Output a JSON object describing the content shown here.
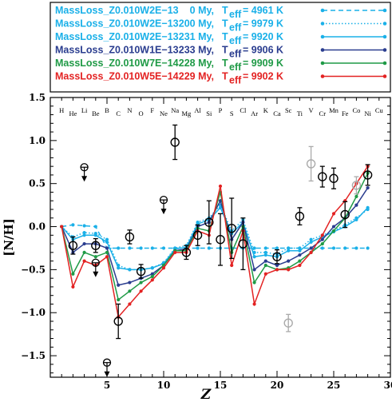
{
  "chart_data": {
    "type": "line",
    "xlabel": "Z",
    "ylabel": "[N/H]",
    "xlim": [
      0,
      30
    ],
    "ylim": [
      -1.75,
      1.5
    ],
    "x_ticks": [
      5,
      10,
      15,
      20,
      25,
      30
    ],
    "y_ticks": [
      -1.5,
      -1.0,
      -0.5,
      0.0,
      0.5,
      1.0,
      1.5
    ],
    "x_tick_labels": [
      "5",
      "10",
      "15",
      "20",
      "25",
      "30"
    ],
    "y_tick_labels": [
      "−1.5",
      "−1.0",
      "−0.5",
      "0.0",
      "0.5",
      "1.0",
      "1.5"
    ],
    "legend_position": "top",
    "element_labels": [
      {
        "z": 1,
        "label": "H"
      },
      {
        "z": 2,
        "label": "He"
      },
      {
        "z": 3,
        "label": "Li"
      },
      {
        "z": 4,
        "label": "Be"
      },
      {
        "z": 5,
        "label": "B"
      },
      {
        "z": 6,
        "label": "C"
      },
      {
        "z": 7,
        "label": "N"
      },
      {
        "z": 8,
        "label": "O"
      },
      {
        "z": 9,
        "label": "F"
      },
      {
        "z": 10,
        "label": "Ne"
      },
      {
        "z": 11,
        "label": "Na"
      },
      {
        "z": 12,
        "label": "Mg"
      },
      {
        "z": 13,
        "label": "Al"
      },
      {
        "z": 14,
        "label": "Si"
      },
      {
        "z": 15,
        "label": "P"
      },
      {
        "z": 16,
        "label": "S"
      },
      {
        "z": 17,
        "label": "Cl"
      },
      {
        "z": 18,
        "label": "Ar"
      },
      {
        "z": 19,
        "label": "K"
      },
      {
        "z": 20,
        "label": "Ca"
      },
      {
        "z": 21,
        "label": "Sc"
      },
      {
        "z": 22,
        "label": "Ti"
      },
      {
        "z": 23,
        "label": "V"
      },
      {
        "z": 24,
        "label": "Cr"
      },
      {
        "z": 25,
        "label": "Mn"
      },
      {
        "z": 26,
        "label": "Fe"
      },
      {
        "z": 27,
        "label": "Co"
      },
      {
        "z": 28,
        "label": "Ni"
      },
      {
        "z": 29,
        "label": "Cu"
      }
    ],
    "series": [
      {
        "name": "MassLoss_Z0.010W2E−13",
        "age": "0 My,",
        "teff_symbol": "T",
        "teff_sub": "eff",
        "teff_value": "= 4961 K",
        "color": "#1ab0e8",
        "dash": "dashed",
        "x": [
          1,
          2,
          3,
          4,
          5,
          6,
          7,
          8,
          9,
          10,
          11,
          12,
          13,
          14,
          15,
          16,
          17,
          18,
          19,
          20,
          21,
          22,
          23,
          24,
          25,
          26,
          27,
          28
        ],
        "y": [
          0,
          0.02,
          0.01,
          0,
          -0.25,
          -0.25,
          -0.25,
          -0.25,
          -0.25,
          -0.25,
          -0.25,
          -0.25,
          -0.25,
          -0.25,
          -0.25,
          -0.25,
          -0.25,
          -0.25,
          -0.25,
          -0.25,
          -0.25,
          -0.25,
          -0.25,
          -0.25,
          -0.25,
          -0.25,
          -0.25,
          -0.25
        ]
      },
      {
        "name": "MassLoss_Z0.010W2E−13",
        "age": "200 My,",
        "teff_symbol": "T",
        "teff_sub": "eff",
        "teff_value": "= 9979 K",
        "color": "#1ab0e8",
        "dash": "dotted",
        "x": [
          1,
          2,
          3,
          4,
          5,
          6,
          7,
          8,
          9,
          10,
          11,
          12,
          13,
          14,
          15,
          16,
          17,
          18,
          19,
          20,
          21,
          22,
          23,
          24,
          25,
          26,
          27,
          28
        ],
        "y": [
          0,
          -0.12,
          -0.07,
          -0.08,
          -0.15,
          -0.45,
          -0.5,
          -0.5,
          -0.48,
          -0.42,
          -0.25,
          -0.22,
          0.05,
          0.1,
          0.25,
          -0.05,
          0.08,
          -0.3,
          -0.3,
          -0.32,
          -0.25,
          -0.25,
          -0.15,
          -0.1,
          -0.05,
          0.02,
          0.1,
          0.2
        ]
      },
      {
        "name": "MassLoss_Z0.010W2E−13",
        "age": "231 My,",
        "teff_symbol": "T",
        "teff_sub": "eff",
        "teff_value": "= 9920 K",
        "color": "#1ab0e8",
        "dash": "solid",
        "x": [
          1,
          2,
          3,
          4,
          5,
          6,
          7,
          8,
          9,
          10,
          11,
          12,
          13,
          14,
          15,
          16,
          17,
          18,
          19,
          20,
          21,
          22,
          23,
          24,
          25,
          26,
          27,
          28
        ],
        "y": [
          0,
          -0.15,
          -0.1,
          -0.1,
          -0.18,
          -0.48,
          -0.5,
          -0.5,
          -0.48,
          -0.43,
          -0.26,
          -0.24,
          0.03,
          0.08,
          0.22,
          -0.08,
          0.05,
          -0.35,
          -0.33,
          -0.35,
          -0.28,
          -0.28,
          -0.18,
          -0.12,
          -0.06,
          0,
          0.08,
          0.22
        ]
      },
      {
        "name": "MassLoss_Z0.010W1E−13",
        "age": "233 My,",
        "teff_symbol": "T",
        "teff_sub": "eff",
        "teff_value": "= 9906 K",
        "color": "#2a3d8f",
        "dash": "solid",
        "x": [
          1,
          2,
          3,
          4,
          5,
          6,
          7,
          8,
          9,
          10,
          11,
          12,
          13,
          14,
          15,
          16,
          17,
          18,
          19,
          20,
          21,
          22,
          23,
          24,
          25,
          26,
          27,
          28
        ],
        "y": [
          0,
          -0.3,
          -0.2,
          -0.2,
          -0.25,
          -0.68,
          -0.65,
          -0.6,
          -0.55,
          -0.45,
          -0.28,
          -0.26,
          0,
          0.05,
          0.3,
          -0.15,
          0.05,
          -0.5,
          -0.4,
          -0.45,
          -0.4,
          -0.33,
          -0.25,
          -0.15,
          0,
          0.1,
          0.25,
          0.45
        ]
      },
      {
        "name": "MassLoss_Z0.010W7E−14",
        "age": "228 My,",
        "teff_symbol": "T",
        "teff_sub": "eff",
        "teff_value": "= 9909 K",
        "color": "#1f9a46",
        "dash": "solid",
        "x": [
          1,
          2,
          3,
          4,
          5,
          6,
          7,
          8,
          9,
          10,
          11,
          12,
          13,
          14,
          15,
          16,
          17,
          18,
          19,
          20,
          21,
          22,
          23,
          24,
          25,
          26,
          27,
          28
        ],
        "y": [
          0,
          -0.55,
          -0.3,
          -0.35,
          -0.3,
          -0.85,
          -0.75,
          -0.65,
          -0.58,
          -0.45,
          -0.28,
          -0.28,
          -0.02,
          -0.05,
          0.4,
          -0.3,
          0,
          -0.65,
          -0.45,
          -0.5,
          -0.48,
          -0.4,
          -0.3,
          -0.2,
          -0.05,
          0.1,
          0.35,
          0.62
        ]
      },
      {
        "name": "MassLoss_Z0.010W5E−14",
        "age": "229 My,",
        "teff_symbol": "T",
        "teff_sub": "eff",
        "teff_value": "= 9902 K",
        "color": "#e32222",
        "dash": "solid",
        "x": [
          1,
          2,
          3,
          4,
          5,
          6,
          7,
          8,
          9,
          10,
          11,
          12,
          13,
          14,
          15,
          16,
          17,
          18,
          19,
          20,
          21,
          22,
          23,
          24,
          25,
          26,
          27,
          28
        ],
        "y": [
          0,
          -0.7,
          -0.4,
          -0.45,
          -0.35,
          -1.05,
          -0.9,
          -0.75,
          -0.62,
          -0.48,
          -0.3,
          -0.3,
          -0.05,
          -0.1,
          0.47,
          -0.45,
          -0.05,
          -0.9,
          -0.55,
          -0.5,
          -0.5,
          -0.45,
          -0.3,
          -0.1,
          0.15,
          0.3,
          0.5,
          0.7
        ]
      }
    ],
    "observations": [
      {
        "x": 2,
        "y": -0.22,
        "err": 0.1,
        "color": "#000000"
      },
      {
        "x": 4,
        "y": -0.22,
        "err": 0.08,
        "color": "#000000"
      },
      {
        "x": 6,
        "y": -1.1,
        "err": 0.2,
        "color": "#000000"
      },
      {
        "x": 7,
        "y": -0.12,
        "err": 0.08,
        "color": "#000000"
      },
      {
        "x": 8,
        "y": -0.52,
        "err": 0.08,
        "color": "#000000"
      },
      {
        "x": 11,
        "y": 0.98,
        "err": 0.2,
        "color": "#000000"
      },
      {
        "x": 12,
        "y": -0.3,
        "err": 0.08,
        "color": "#000000"
      },
      {
        "x": 13,
        "y": -0.1,
        "err": 0.12,
        "color": "#000000"
      },
      {
        "x": 14,
        "y": 0.05,
        "err": 0.25,
        "color": "#000000"
      },
      {
        "x": 15,
        "y": -0.15,
        "err": 0.3,
        "color": "#000000"
      },
      {
        "x": 16,
        "y": -0.02,
        "err": 0.35,
        "color": "#000000"
      },
      {
        "x": 17,
        "y": -0.2,
        "err": 0.3,
        "color": "#000000"
      },
      {
        "x": 20,
        "y": -0.35,
        "err": 0.08,
        "color": "#000000"
      },
      {
        "x": 22,
        "y": 0.12,
        "err": 0.1,
        "color": "#000000"
      },
      {
        "x": 24,
        "y": 0.58,
        "err": 0.12,
        "color": "#000000"
      },
      {
        "x": 25,
        "y": 0.56,
        "err": 0.12,
        "color": "#000000"
      },
      {
        "x": 26,
        "y": 0.14,
        "err": 0.15,
        "color": "#000000"
      },
      {
        "x": 28,
        "y": 0.6,
        "err": 0.12,
        "color": "#000000"
      },
      {
        "x": 21,
        "y": -1.12,
        "err": 0.1,
        "color": "#aaaaaa"
      },
      {
        "x": 23,
        "y": 0.73,
        "err": 0.2,
        "color": "#aaaaaa"
      },
      {
        "x": 27,
        "y": 0.48,
        "err": 0.1,
        "color": "#aaaaaa"
      }
    ],
    "upper_limits": [
      {
        "x": 3,
        "y": 0.69
      },
      {
        "x": 4,
        "y": -0.42
      },
      {
        "x": 5,
        "y": -1.58
      },
      {
        "x": 10,
        "y": 0.31
      }
    ]
  }
}
